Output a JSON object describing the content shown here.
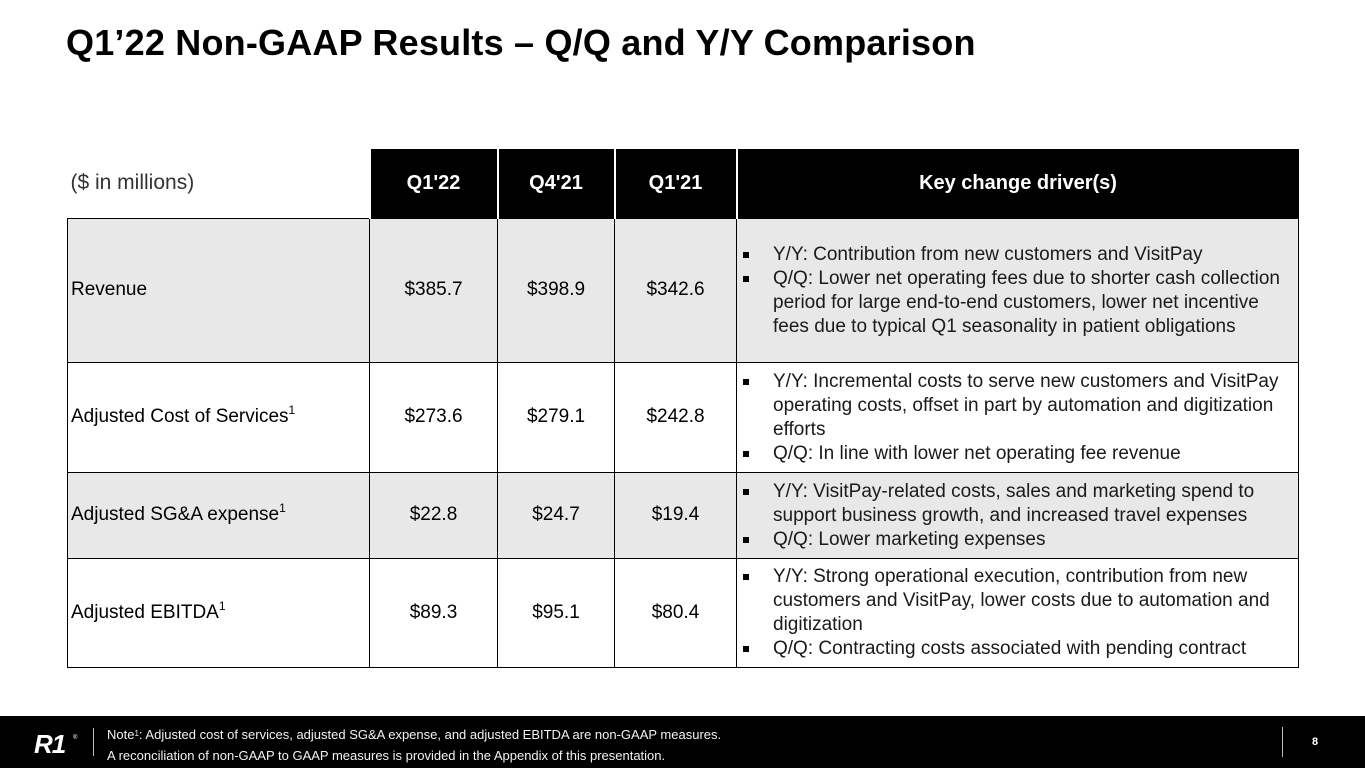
{
  "page": {
    "title": "Q1’22 Non-GAAP Results – Q/Q and Y/Y Comparison",
    "page_number": "8"
  },
  "table": {
    "units_label": "($ in millions)",
    "columns": [
      "Q1'22",
      "Q4'21",
      "Q1'21",
      "Key change driver(s)"
    ],
    "rows": [
      {
        "metric": "Revenue",
        "sup": "",
        "values": [
          "$385.7",
          "$398.9",
          "$342.6"
        ],
        "drivers": [
          "Y/Y: Contribution from new customers and VisitPay",
          "Q/Q: Lower net operating fees due to shorter cash collection period for large end-to-end customers, lower net incentive fees due to typical Q1 seasonality in patient obligations"
        ]
      },
      {
        "metric": "Adjusted Cost of Services",
        "sup": "1",
        "values": [
          "$273.6",
          "$279.1",
          "$242.8"
        ],
        "drivers": [
          "Y/Y: Incremental costs to serve new customers and VisitPay operating costs, offset in part by automation and digitization efforts",
          "Q/Q: In line with lower net operating fee revenue"
        ]
      },
      {
        "metric": "Adjusted SG&A expense",
        "sup": "1",
        "values": [
          "$22.8",
          "$24.7",
          "$19.4"
        ],
        "drivers": [
          "Y/Y: VisitPay-related costs, sales and marketing spend to support business growth, and increased travel expenses",
          "Q/Q: Lower marketing expenses"
        ]
      },
      {
        "metric": "Adjusted EBITDA",
        "sup": "1",
        "values": [
          "$89.3",
          "$95.1",
          "$80.4"
        ],
        "drivers": [
          "Y/Y: Strong operational execution, contribution from new customers and VisitPay, lower costs due to automation and digitization",
          "Q/Q: Contracting costs associated with pending contract"
        ]
      }
    ]
  },
  "footer": {
    "logo_text": "R1",
    "logo_mark": "®",
    "note_prefix": "Note",
    "note_sup": "1",
    "note_line1_rest": ": Adjusted cost of services, adjusted SG&A expense, and adjusted EBITDA are non-GAAP measures.",
    "note_line2": "A reconciliation of non-GAAP to GAAP measures is provided in the Appendix of this presentation."
  }
}
